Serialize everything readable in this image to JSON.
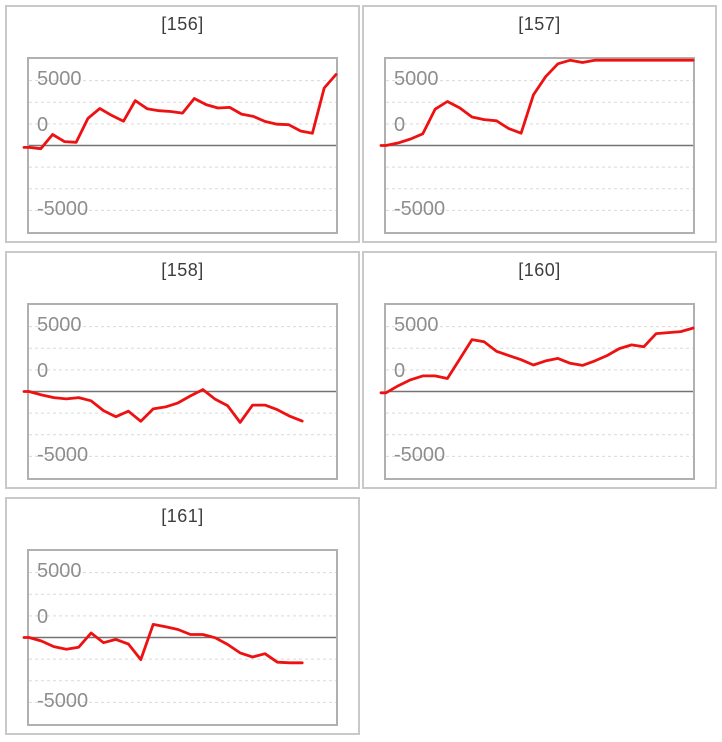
{
  "page": {
    "background_color": "#ffffff",
    "cell_border_color": "#c9c9c9",
    "plot_border_color": "#b0b0b0"
  },
  "axis": {
    "ymax": 6667,
    "ymin": -6667,
    "dashed_gridlines": [
      5000,
      3333,
      1667,
      -1667,
      -3333,
      -5000
    ],
    "zero_line_value": 0,
    "gridline_color": "#d9d9d9",
    "zero_line_color": "#737373",
    "label_color": "#8e8e8e",
    "grid": "on",
    "legend": "none"
  },
  "chart_data": [
    {
      "type": "line",
      "title": "[156]",
      "xlabel": "",
      "ylabel": "",
      "y_axis_labels": [
        "5000",
        "0",
        "-5000"
      ],
      "ylim": [
        -6667,
        6667
      ],
      "series_color": "#ee1111",
      "x_span_fraction": 1.0,
      "values": [
        -150,
        -250,
        850,
        300,
        250,
        2100,
        2850,
        2320,
        1870,
        3460,
        2840,
        2680,
        2620,
        2500,
        3620,
        3150,
        2890,
        2940,
        2420,
        2240,
        1850,
        1640,
        1600,
        1120,
        940,
        4430,
        5470
      ]
    },
    {
      "type": "line",
      "title": "[157]",
      "xlabel": "",
      "ylabel": "",
      "y_axis_labels": [
        "5000",
        "0",
        "-5000"
      ],
      "ylim": [
        -6667,
        6667
      ],
      "series_color": "#ee1111",
      "x_span_fraction": 1.0,
      "values": [
        0,
        200,
        500,
        900,
        2800,
        3390,
        2900,
        2200,
        2000,
        1900,
        1300,
        950,
        3900,
        5300,
        6300,
        6700,
        6400,
        6650,
        6660,
        6660,
        6660,
        6660,
        6660,
        6660,
        6660,
        6660
      ]
    },
    {
      "type": "line",
      "title": "[158]",
      "xlabel": "",
      "ylabel": "",
      "y_axis_labels": [
        "5000",
        "0",
        "-5000"
      ],
      "ylim": [
        -6667,
        6667
      ],
      "series_color": "#ee1111",
      "x_span_fraction": 0.89,
      "values": [
        0,
        -260,
        -470,
        -570,
        -470,
        -720,
        -1470,
        -1940,
        -1520,
        -2300,
        -1340,
        -1190,
        -880,
        -340,
        150,
        -600,
        -1100,
        -2380,
        -1050,
        -1050,
        -1400,
        -1900,
        -2280
      ]
    },
    {
      "type": "line",
      "title": "[160]",
      "xlabel": "",
      "ylabel": "",
      "y_axis_labels": [
        "5000",
        "0",
        "-5000"
      ],
      "ylim": [
        -6667,
        6667
      ],
      "series_color": "#ee1111",
      "x_span_fraction": 1.0,
      "values": [
        -100,
        450,
        900,
        1200,
        1200,
        1000,
        2500,
        4000,
        3830,
        3100,
        2770,
        2450,
        2040,
        2360,
        2550,
        2170,
        2010,
        2360,
        2770,
        3310,
        3590,
        3450,
        4460,
        4540,
        4620,
        4890
      ]
    },
    {
      "type": "line",
      "title": "[161]",
      "xlabel": "",
      "ylabel": "",
      "y_axis_labels": [
        "5000",
        "0",
        "-5000"
      ],
      "ylim": [
        -6667,
        6667
      ],
      "series_color": "#ee1111",
      "x_span_fraction": 0.89,
      "values": [
        0,
        -270,
        -700,
        -900,
        -750,
        350,
        -400,
        -150,
        -500,
        -1700,
        1010,
        830,
        620,
        230,
        230,
        -20,
        -540,
        -1190,
        -1500,
        -1250,
        -1900,
        -1950,
        -1950
      ]
    }
  ]
}
